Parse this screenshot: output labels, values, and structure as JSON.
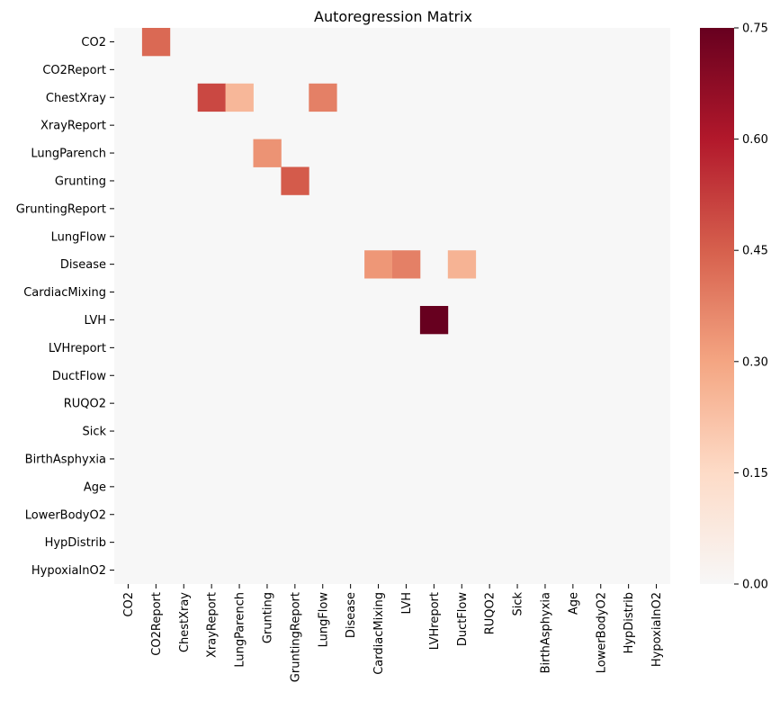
{
  "chart_data": {
    "type": "heatmap",
    "title": "Autoregression Matrix",
    "rows": [
      "CO2",
      "CO2Report",
      "ChestXray",
      "XrayReport",
      "LungParench",
      "Grunting",
      "GruntingReport",
      "LungFlow",
      "Disease",
      "CardiacMixing",
      "LVH",
      "LVHreport",
      "DuctFlow",
      "RUQO2",
      "Sick",
      "BirthAsphyxia",
      "Age",
      "LowerBodyO2",
      "HypDistrib",
      "HypoxiaInO2"
    ],
    "columns": [
      "CO2",
      "CO2Report",
      "ChestXray",
      "XrayReport",
      "LungParench",
      "Grunting",
      "GruntingReport",
      "LungFlow",
      "Disease",
      "CardiacMixing",
      "LVH",
      "LVHreport",
      "DuctFlow",
      "RUQO2",
      "Sick",
      "BirthAsphyxia",
      "Age",
      "LowerBodyO2",
      "HypDistrib",
      "HypoxiaInO2"
    ],
    "cells": [
      {
        "row": "CO2",
        "col": "CO2Report",
        "value": 0.43
      },
      {
        "row": "ChestXray",
        "col": "XrayReport",
        "value": 0.5
      },
      {
        "row": "ChestXray",
        "col": "LungParench",
        "value": 0.25
      },
      {
        "row": "ChestXray",
        "col": "LungFlow",
        "value": 0.38
      },
      {
        "row": "LungParench",
        "col": "Grunting",
        "value": 0.34
      },
      {
        "row": "Grunting",
        "col": "GruntingReport",
        "value": 0.46
      },
      {
        "row": "Disease",
        "col": "CardiacMixing",
        "value": 0.33
      },
      {
        "row": "Disease",
        "col": "LVH",
        "value": 0.38
      },
      {
        "row": "Disease",
        "col": "DuctFlow",
        "value": 0.26
      },
      {
        "row": "LVH",
        "col": "LVHreport",
        "value": 0.75
      }
    ],
    "default_value": 0,
    "colorbar": {
      "colormap": "RdBu_r (upper half)",
      "vmin": 0,
      "vmax": 0.75,
      "ticks": [
        "0.00",
        "0.15",
        "0.30",
        "0.45",
        "0.60",
        "0.75"
      ]
    }
  }
}
